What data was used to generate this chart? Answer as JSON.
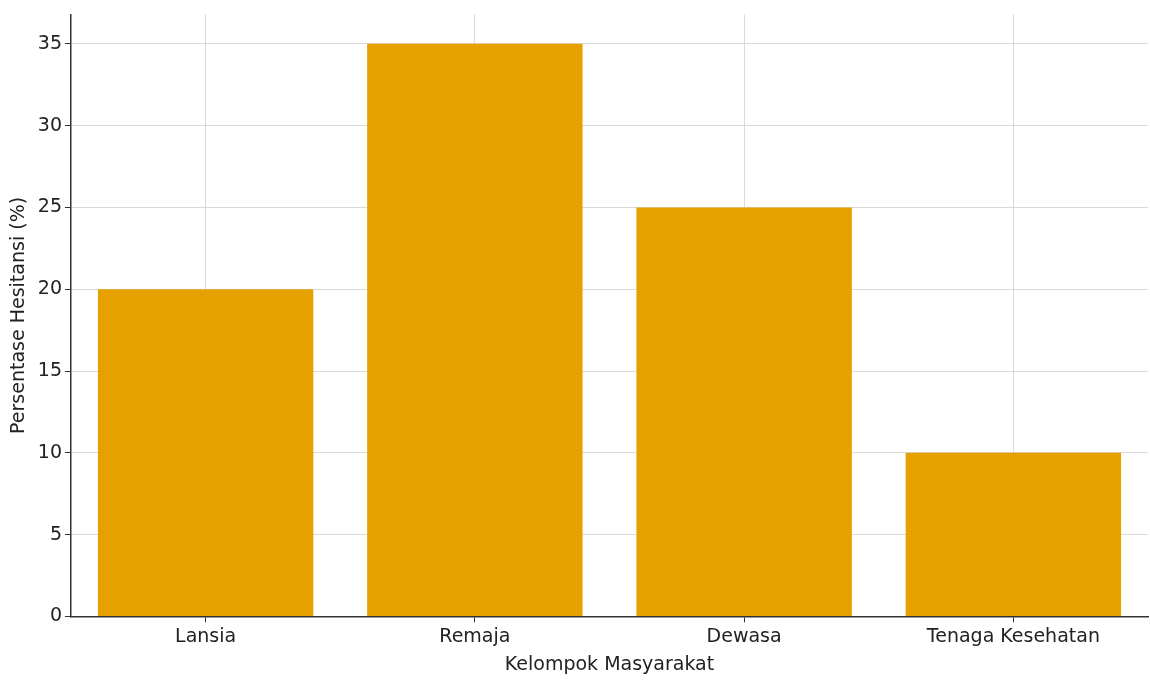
{
  "chart_data": {
    "type": "bar",
    "xlabel": "Kelompok Masyarakat",
    "ylabel": "Persentase Hesitansi (%)",
    "categories": [
      "Lansia",
      "Remaja",
      "Dewasa",
      "Tenaga Kesehatan"
    ],
    "values": [
      20,
      35,
      25,
      10
    ],
    "color": "#e6a000",
    "ylim": [
      0,
      36.8
    ],
    "yticks": [
      0,
      5,
      10,
      15,
      20,
      25,
      30,
      35
    ],
    "grid": true
  }
}
